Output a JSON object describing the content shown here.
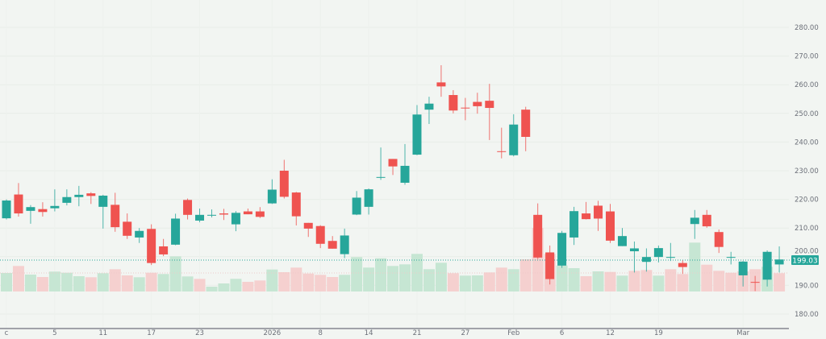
{
  "chart_data": {
    "type": "candlestick",
    "colors": {
      "up": "#26a69a",
      "down": "#ef5350",
      "volume_up": "#c6e6d3",
      "volume_down": "#f5d0cf",
      "background": "#f2f5f2"
    },
    "ylim": [
      180,
      280
    ],
    "y_ticks": [
      "280.00",
      "270.00",
      "260.00",
      "250.00",
      "240.00",
      "230.00",
      "220.00",
      "210.00",
      "200.00",
      "190.00",
      "180.00"
    ],
    "x_ticks": [
      {
        "index": 0,
        "label": "c"
      },
      {
        "index": 4,
        "label": "5"
      },
      {
        "index": 8,
        "label": "11"
      },
      {
        "index": 12,
        "label": "17"
      },
      {
        "index": 16,
        "label": "23"
      },
      {
        "index": 22,
        "label": "2026"
      },
      {
        "index": 26,
        "label": "8"
      },
      {
        "index": 30,
        "label": "14"
      },
      {
        "index": 34,
        "label": "21"
      },
      {
        "index": 38,
        "label": "27"
      },
      {
        "index": 42,
        "label": "Feb"
      },
      {
        "index": 46,
        "label": "6"
      },
      {
        "index": 50,
        "label": "12"
      },
      {
        "index": 54,
        "label": "19"
      },
      {
        "index": 61,
        "label": "Mar"
      }
    ],
    "last_price": "199.03",
    "ohlc": [
      [
        213.4,
        220,
        213,
        219.6
      ],
      [
        221.7,
        225.7,
        214,
        215.1
      ],
      [
        216,
        218,
        211.5,
        217.3
      ],
      [
        216.6,
        219,
        214,
        215.6
      ],
      [
        216.9,
        223.5,
        215.8,
        217.7
      ],
      [
        218.8,
        223.5,
        217.9,
        220.8
      ],
      [
        220.8,
        224.7,
        217.6,
        221.6
      ],
      [
        222.1,
        222.5,
        218.4,
        221.2
      ],
      [
        217.4,
        221.6,
        209.8,
        221.3
      ],
      [
        218.1,
        222.3,
        208.7,
        210.3
      ],
      [
        212.2,
        215.1,
        206.2,
        207.3
      ],
      [
        206.7,
        210,
        204.8,
        209
      ],
      [
        209.7,
        211.3,
        197.1,
        197.8
      ],
      [
        203.6,
        206.2,
        200.2,
        200.8
      ],
      [
        204.2,
        215,
        204,
        213.3
      ],
      [
        219.8,
        220.3,
        213,
        214.6
      ],
      [
        212.6,
        216.8,
        212,
        214.6
      ],
      [
        214.5,
        216.5,
        213.7,
        214.6
      ],
      [
        215.1,
        216.7,
        212.8,
        214.7
      ],
      [
        211.3,
        215.9,
        208.9,
        215.3
      ],
      [
        215.8,
        216.8,
        214.8,
        214.8
      ],
      [
        215.8,
        217.3,
        213.5,
        213.9
      ],
      [
        218.6,
        227,
        218.4,
        223.4
      ],
      [
        230,
        233.8,
        220.3,
        220.9
      ],
      [
        222.4,
        222.6,
        210.9,
        214.1
      ],
      [
        211.8,
        211.8,
        206.9,
        209.8
      ],
      [
        210.7,
        211,
        203,
        204.5
      ],
      [
        205.5,
        207.2,
        202.8,
        202.8
      ],
      [
        200.9,
        209.8,
        199.5,
        207.4
      ],
      [
        214.7,
        222.9,
        214.5,
        220.6
      ],
      [
        217.4,
        223.8,
        214.7,
        223.5
      ],
      [
        227.6,
        238.1,
        226.8,
        227.8
      ],
      [
        234.1,
        234.1,
        228.5,
        231.5
      ],
      [
        225.8,
        239.3,
        225.1,
        231.7
      ],
      [
        235.6,
        252.9,
        235.4,
        249.6
      ],
      [
        251.3,
        255.8,
        246.3,
        253.4
      ],
      [
        260.8,
        266.8,
        255.8,
        259.4
      ],
      [
        256.4,
        258.1,
        250,
        251
      ],
      [
        252,
        255.4,
        247.6,
        251.9
      ],
      [
        254,
        257.2,
        249.9,
        252.5
      ],
      [
        254.4,
        260.3,
        240.7,
        251.9
      ],
      [
        236.8,
        245,
        234.3,
        236.7
      ],
      [
        235.4,
        249.7,
        235,
        246.1
      ],
      [
        251.3,
        252.3,
        236.8,
        241.8
      ],
      [
        214.6,
        218.6,
        199.2,
        199.7
      ],
      [
        201.5,
        203.9,
        190.3,
        192.2
      ],
      [
        196.9,
        209,
        196.1,
        208.3
      ],
      [
        206.7,
        217.4,
        204.1,
        215.9
      ],
      [
        215.1,
        219.1,
        213,
        213.1
      ],
      [
        217.8,
        219.5,
        209,
        213.3
      ],
      [
        215.8,
        218.4,
        204.8,
        205.6
      ],
      [
        203.7,
        210,
        203.7,
        207.2
      ],
      [
        201.9,
        205.3,
        194.5,
        202.9
      ],
      [
        198.2,
        202.9,
        194.8,
        199.9
      ],
      [
        199.9,
        203.9,
        198,
        203
      ],
      [
        199.8,
        204.8,
        198.5,
        199.9
      ],
      [
        197.8,
        198.7,
        194,
        196.4
      ],
      [
        211.4,
        216.3,
        206.2,
        213.6
      ],
      [
        214.6,
        216.3,
        210.1,
        210.6
      ],
      [
        208.6,
        209.5,
        201.3,
        203.4
      ],
      [
        199.8,
        201.7,
        197.3,
        199.9
      ],
      [
        193.5,
        198.5,
        189.6,
        198.3
      ],
      [
        191.2,
        193.3,
        188,
        191
      ],
      [
        192,
        202.2,
        189.6,
        201.7
      ],
      [
        197.3,
        203.6,
        194.5,
        199.03
      ]
    ],
    "volume_relative": [
      23,
      31.7,
      21,
      18,
      24.7,
      23.3,
      19,
      17.7,
      22.7,
      27.7,
      20,
      17.7,
      23.3,
      21.7,
      43.7,
      18.7,
      15.7,
      6,
      10,
      15.7,
      12,
      13.7,
      27.3,
      24,
      29.7,
      22.3,
      20.7,
      18,
      20.7,
      42.7,
      29.7,
      41.3,
      31.7,
      33.7,
      46.7,
      27.7,
      35.7,
      22.7,
      19.7,
      20,
      23.7,
      29.7,
      27.7,
      40,
      79,
      46.7,
      32.3,
      29,
      19,
      25,
      24.3,
      19.7,
      25.7,
      26.7,
      19.7,
      27.7,
      21.7,
      60.7,
      33.3,
      25.7,
      23.3,
      25,
      27.7,
      30.7,
      22.7
    ],
    "volume_up": [
      1,
      0,
      1,
      0,
      1,
      1,
      1,
      0,
      1,
      0,
      0,
      1,
      0,
      1,
      1,
      1,
      0,
      1,
      1,
      1,
      0,
      0,
      1,
      0,
      0,
      0,
      0,
      0,
      1,
      1,
      1,
      1,
      1,
      1,
      1,
      1,
      1,
      0,
      1,
      1,
      0,
      0,
      1,
      0,
      0,
      0,
      1,
      1,
      0,
      1,
      0,
      1,
      0,
      0,
      1,
      0,
      0,
      1,
      0,
      0,
      0,
      0,
      0,
      1,
      0
    ]
  }
}
